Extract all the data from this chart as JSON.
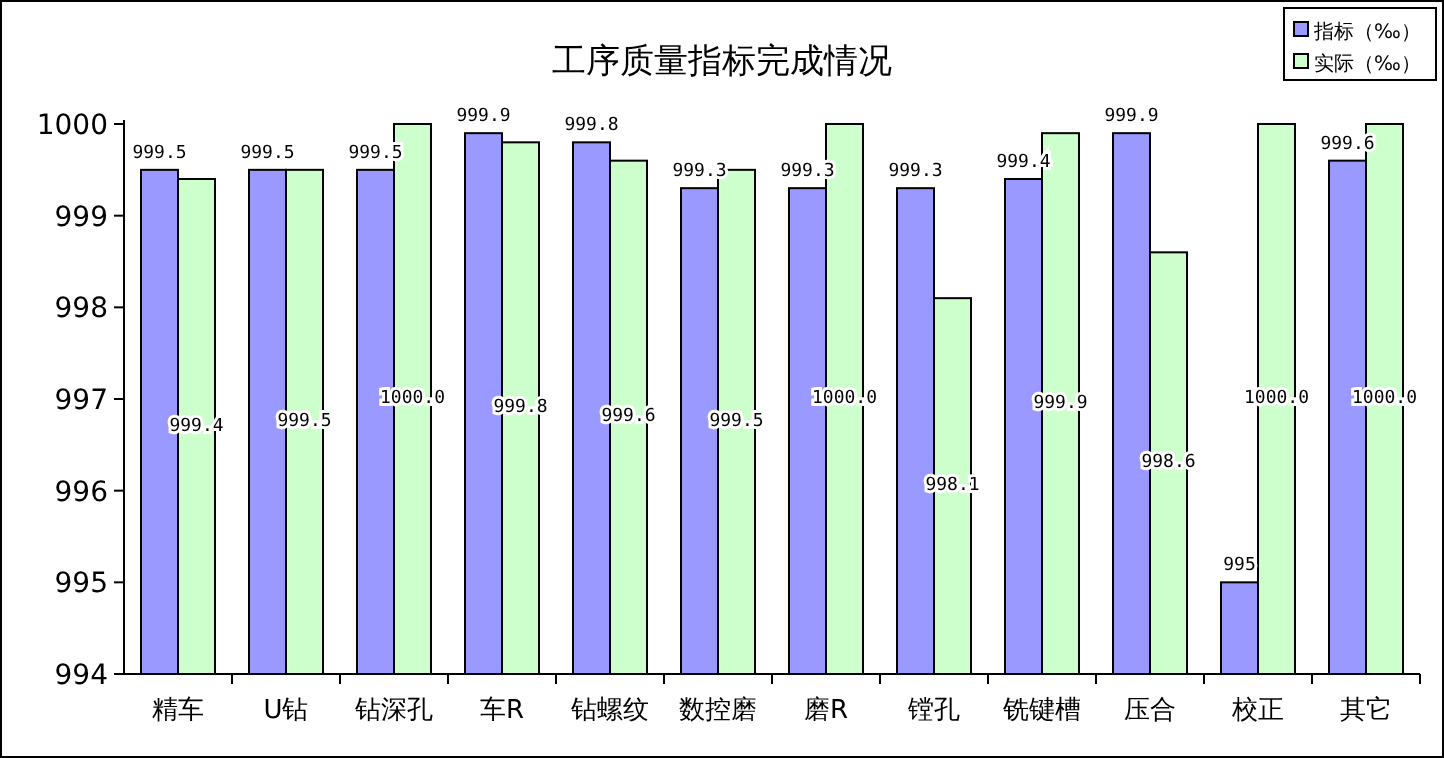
{
  "chart_data": {
    "type": "bar",
    "title": "工序质量指标完成情况",
    "categories": [
      "精车",
      "U钻",
      "钻深孔",
      "车R",
      "钻螺纹",
      "数控磨",
      "磨R",
      "镗孔",
      "铣键槽",
      "压合",
      "校正",
      "其它"
    ],
    "series": [
      {
        "name": "指标（‰）",
        "color": "#9999ff",
        "values": [
          999.5,
          999.5,
          999.5,
          999.9,
          999.8,
          999.3,
          999.3,
          999.3,
          999.4,
          999.9,
          995,
          999.6
        ],
        "value_labels": [
          "999.5",
          "999.5",
          "999.5",
          "999.9",
          "999.8",
          "999.3",
          "999.3",
          "999.3",
          "999.4",
          "999.9",
          "995",
          "999.6"
        ]
      },
      {
        "name": "实际（‰）",
        "color": "#ccffcc",
        "values": [
          999.4,
          999.5,
          1000.0,
          999.8,
          999.6,
          999.5,
          1000.0,
          998.1,
          999.9,
          998.6,
          1000.0,
          1000.0
        ],
        "value_labels": [
          "999.4",
          "999.5",
          "1000.0",
          "999.8",
          "999.6",
          "999.5",
          "1000.0",
          "998.1",
          "999.9",
          "998.6",
          "1000.0",
          "1000.0"
        ]
      }
    ],
    "ylim": [
      994,
      1000
    ],
    "yticks": [
      994,
      995,
      996,
      997,
      998,
      999,
      1000
    ],
    "legend": "top right"
  }
}
